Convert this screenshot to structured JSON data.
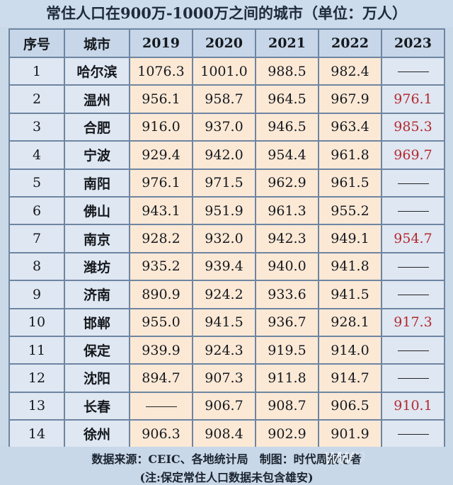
{
  "title": "常住人口在900万-1000万之间的城市（单位：万人）",
  "headers": [
    "序号",
    "城市",
    "2019",
    "2020",
    "2021",
    "2022",
    "2023"
  ],
  "rows": [
    {
      "idx": "1",
      "city": "哈尔滨",
      "v2019": "1076.3",
      "v2020": "1001.0",
      "v2021": "988.5",
      "v2022": "982.4",
      "v2023": ""
    },
    {
      "idx": "2",
      "city": "温州",
      "v2019": "956.1",
      "v2020": "958.7",
      "v2021": "964.5",
      "v2022": "967.9",
      "v2023": "976.1"
    },
    {
      "idx": "3",
      "city": "合肥",
      "v2019": "916.0",
      "v2020": "937.0",
      "v2021": "946.5",
      "v2022": "963.4",
      "v2023": "985.3"
    },
    {
      "idx": "4",
      "city": "宁波",
      "v2019": "929.4",
      "v2020": "942.0",
      "v2021": "954.4",
      "v2022": "961.8",
      "v2023": "969.7"
    },
    {
      "idx": "5",
      "city": "南阳",
      "v2019": "976.1",
      "v2020": "971.5",
      "v2021": "962.9",
      "v2022": "961.5",
      "v2023": ""
    },
    {
      "idx": "6",
      "city": "佛山",
      "v2019": "943.1",
      "v2020": "951.9",
      "v2021": "961.3",
      "v2022": "955.2",
      "v2023": ""
    },
    {
      "idx": "7",
      "city": "南京",
      "v2019": "928.2",
      "v2020": "932.0",
      "v2021": "942.3",
      "v2022": "949.1",
      "v2023": "954.7"
    },
    {
      "idx": "8",
      "city": "潍坊",
      "v2019": "935.2",
      "v2020": "939.4",
      "v2021": "940.0",
      "v2022": "941.8",
      "v2023": ""
    },
    {
      "idx": "9",
      "city": "济南",
      "v2019": "890.9",
      "v2020": "924.2",
      "v2021": "933.6",
      "v2022": "941.5",
      "v2023": ""
    },
    {
      "idx": "10",
      "city": "邯郸",
      "v2019": "955.0",
      "v2020": "941.5",
      "v2021": "936.7",
      "v2022": "928.1",
      "v2023": "917.3"
    },
    {
      "idx": "11",
      "city": "保定",
      "v2019": "939.9",
      "v2020": "924.3",
      "v2021": "919.5",
      "v2022": "914.0",
      "v2023": ""
    },
    {
      "idx": "12",
      "city": "沈阳",
      "v2019": "894.7",
      "v2020": "907.3",
      "v2021": "911.8",
      "v2022": "914.7",
      "v2023": ""
    },
    {
      "idx": "13",
      "city": "长春",
      "v2019": "",
      "v2020": "906.7",
      "v2021": "908.7",
      "v2022": "906.5",
      "v2023": "910.1"
    },
    {
      "idx": "14",
      "city": "徐州",
      "v2019": "906.3",
      "v2020": "908.4",
      "v2021": "902.9",
      "v2022": "901.9",
      "v2023": ""
    }
  ],
  "footer": {
    "source": "数据来源：CEIC、各地统计局　制图：时代周报记者",
    "note": "(注:保定常住人口数据未包含雄安)"
  },
  "colors": {
    "highlight_2023": "#b3292e",
    "value_cell_bg": "#fbe9d6",
    "label_cell_bg": "#dfe7f2",
    "border": "#6e85a2"
  }
}
